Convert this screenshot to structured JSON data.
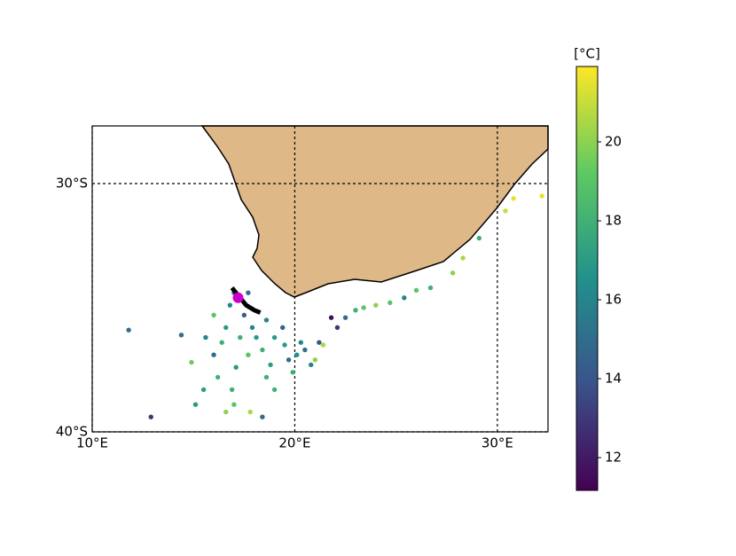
{
  "chart_data": {
    "type": "scatter",
    "cmap": "viridis",
    "colorbar_label": "[°C]",
    "xlim": [
      10,
      32.5
    ],
    "ylim": [
      -40,
      -27.68
    ],
    "xticks": [
      {
        "value": 10,
        "label": "10°E"
      },
      {
        "value": 20,
        "label": "20°E"
      },
      {
        "value": 30,
        "label": "30°E"
      }
    ],
    "yticks": [
      {
        "value": -40,
        "label": "40°S"
      },
      {
        "value": -30,
        "label": "30°S"
      }
    ],
    "grid": true,
    "clim": [
      11.17,
      21.91
    ],
    "cticks": [
      12,
      14,
      16,
      18,
      20
    ],
    "x": [
      11.8,
      12.9,
      14.4,
      14.9,
      15.1,
      15.6,
      16.0,
      16.2,
      16.6,
      16.9,
      17.0,
      16.8,
      17.5,
      17.7,
      17.8,
      18.1,
      18.4,
      18.6,
      18.8,
      19.0,
      19.4,
      19.5,
      19.7,
      19.9,
      20.1,
      20.3,
      20.5,
      20.8,
      21.0,
      21.2,
      21.4,
      21.8,
      22.1,
      22.5,
      23.0,
      23.4,
      24.0,
      24.7,
      25.4,
      26.0,
      26.7,
      27.8,
      28.3,
      29.1,
      30.4,
      30.8,
      32.2,
      16.0,
      16.4,
      17.1,
      17.7,
      18.6,
      17.3,
      17.9,
      16.6,
      19.0,
      15.5,
      18.4,
      17.0
    ],
    "y": [
      -35.9,
      -39.4,
      -36.1,
      -37.2,
      -38.9,
      -36.2,
      -35.3,
      -37.8,
      -39.2,
      -38.3,
      -34.4,
      -34.9,
      -35.3,
      -34.4,
      -39.2,
      -36.2,
      -36.7,
      -35.5,
      -37.3,
      -38.3,
      -35.8,
      -36.5,
      -37.1,
      -37.6,
      -36.9,
      -36.4,
      -36.7,
      -37.3,
      -37.1,
      -36.4,
      -36.5,
      -35.4,
      -35.8,
      -35.4,
      -35.1,
      -35.0,
      -34.9,
      -34.8,
      -34.6,
      -34.3,
      -34.2,
      -33.6,
      -33.0,
      -32.2,
      -31.1,
      -30.6,
      -30.5,
      -36.9,
      -36.4,
      -37.4,
      -36.9,
      -37.8,
      -36.2,
      -35.8,
      -35.8,
      -36.2,
      -38.3,
      -39.4,
      -38.9
    ],
    "values": [
      15,
      13,
      15,
      19.5,
      17,
      16,
      19,
      18,
      20,
      18,
      15,
      16,
      14.5,
      15,
      20.5,
      17,
      18,
      16,
      17,
      18,
      14.5,
      17,
      15,
      18,
      16.5,
      16,
      15,
      16,
      20,
      14,
      20.5,
      11.5,
      13,
      15,
      18,
      19,
      20,
      19,
      16,
      19,
      18,
      20,
      20.5,
      18,
      21,
      21.5,
      21.5,
      15,
      18,
      17,
      19,
      18,
      18,
      16,
      17,
      17,
      17,
      15,
      19
    ],
    "track": {
      "color": "#000000",
      "x": [
        16.9,
        17.2,
        17.6,
        18.0,
        18.3
      ],
      "y": [
        -34.2,
        -34.5,
        -34.9,
        -35.1,
        -35.2
      ]
    },
    "start": {
      "color": "#cc00cc",
      "x": 17.2,
      "y": -34.6
    }
  }
}
